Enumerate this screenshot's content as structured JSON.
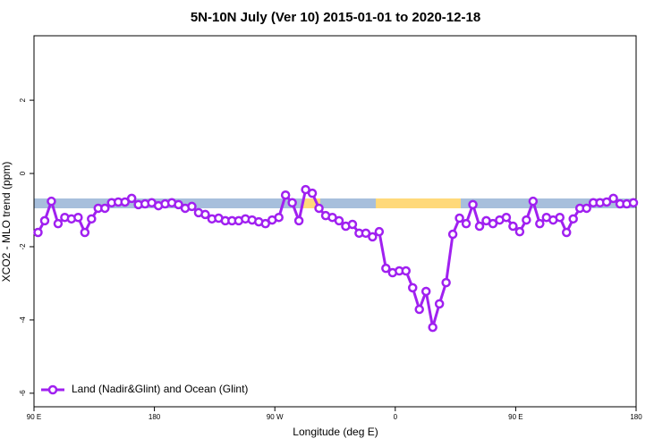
{
  "chart_data": {
    "type": "line",
    "title": "5N-10N July (Ver 10)   2015-01-01 to 2020-12-18",
    "x_label": "Longitude (deg E)",
    "y_label": "XCO2 - MLO trend (ppm)",
    "xlim": [
      90,
      540
    ],
    "ylim": [
      -6.37,
      3.76
    ],
    "xticks": [
      {
        "value": 90,
        "label": "90 E"
      },
      180,
      {
        "value": 270,
        "label": "90 W"
      },
      {
        "value": 360,
        "label": "0"
      },
      {
        "value": 450,
        "label": "90 E"
      },
      {
        "value": 540,
        "label": "180"
      }
    ],
    "yticks": [
      -6,
      -4,
      -2,
      0,
      2
    ],
    "legend": "bottom-left",
    "x": [
      93,
      98,
      103,
      108,
      113,
      118,
      123,
      128,
      133,
      138,
      143,
      148,
      153,
      158,
      163,
      168,
      173,
      178,
      183,
      188,
      193,
      198,
      203,
      208,
      213,
      218,
      223,
      228,
      233,
      238,
      243,
      248,
      253,
      258,
      263,
      268,
      273,
      278,
      283,
      288,
      293,
      298,
      303,
      308,
      313,
      318,
      323,
      328,
      333,
      338,
      343,
      348,
      353,
      358,
      363,
      368,
      373,
      378,
      383,
      388,
      393,
      398,
      403,
      408,
      413,
      418,
      423,
      428,
      433,
      438,
      443,
      448,
      453,
      458,
      463,
      468,
      473,
      478,
      483,
      488,
      493,
      498,
      503,
      508,
      513,
      518,
      523,
      528,
      533,
      538
    ],
    "series": [
      {
        "name": "Land (Nadir&Glint) and Ocean (Glint)",
        "color": "#a020f0",
        "values": [
          -1.61,
          -1.29,
          -0.76,
          -1.37,
          -1.2,
          -1.24,
          -1.2,
          -1.61,
          -1.24,
          -0.95,
          -0.95,
          -0.8,
          -0.78,
          -0.78,
          -0.68,
          -0.85,
          -0.83,
          -0.8,
          -0.88,
          -0.83,
          -0.8,
          -0.85,
          -0.95,
          -0.9,
          -1.07,
          -1.12,
          -1.24,
          -1.22,
          -1.29,
          -1.29,
          -1.29,
          -1.24,
          -1.27,
          -1.32,
          -1.37,
          -1.27,
          -1.2,
          -0.59,
          -0.8,
          -1.29,
          -0.44,
          -0.54,
          -0.95,
          -1.15,
          -1.2,
          -1.29,
          -1.44,
          -1.39,
          -1.63,
          -1.63,
          -1.73,
          -1.59,
          -2.59,
          -2.71,
          -2.66,
          -2.66,
          -3.12,
          -3.71,
          -3.22,
          -4.2,
          -3.56,
          -2.98,
          -1.66,
          -1.22,
          -1.37,
          -0.85,
          -1.44,
          -1.29,
          -1.37,
          -1.27,
          -1.2,
          -1.44,
          -1.59,
          -1.27,
          -0.76,
          -1.37,
          -1.2,
          -1.27,
          -1.2,
          -1.61,
          -1.24,
          -0.95,
          -0.95,
          -0.8,
          -0.8,
          -0.78,
          -0.68,
          -0.83,
          -0.83,
          -0.8
        ]
      }
    ]
  }
}
